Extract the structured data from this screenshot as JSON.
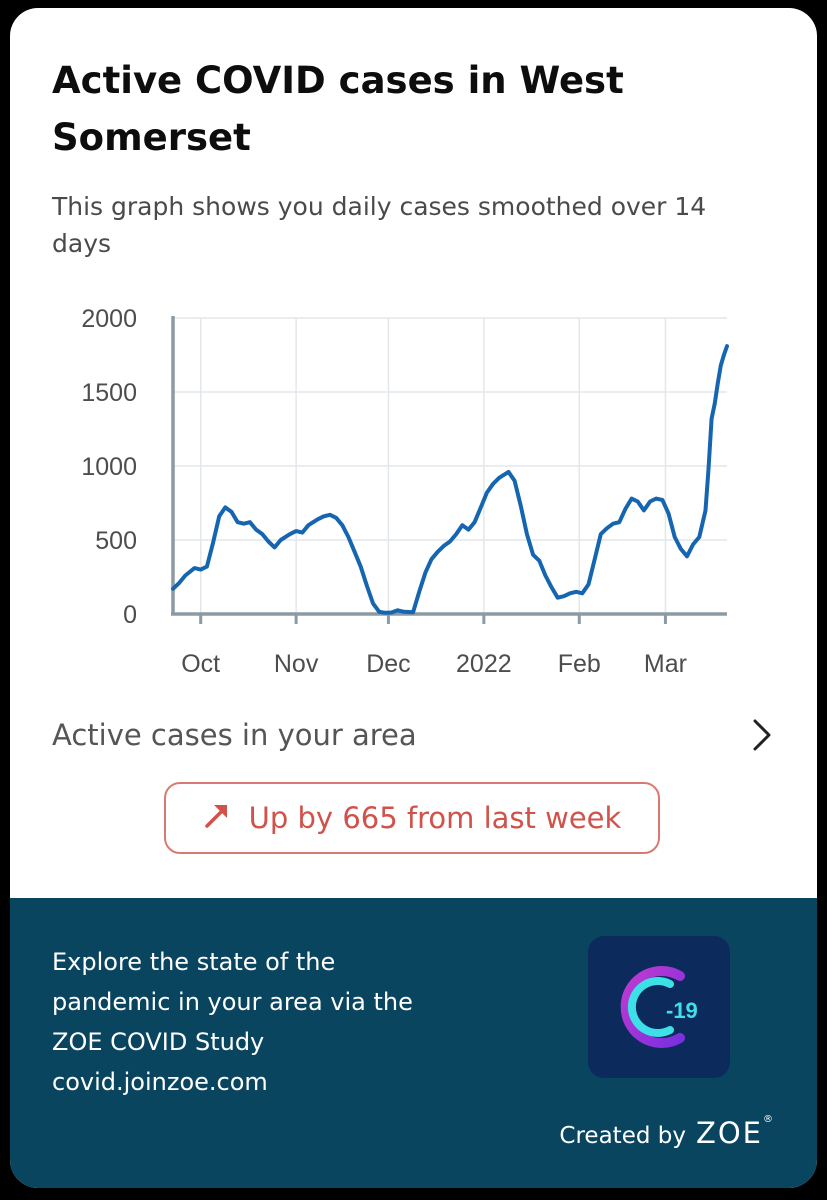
{
  "card": {
    "title": "Active COVID cases in West Somerset",
    "subtitle": "This graph shows you daily cases smoothed over 14 days"
  },
  "chart_data": {
    "type": "line",
    "title": "",
    "xlabel": "",
    "ylabel": "",
    "ylim": [
      0,
      2000
    ],
    "yticks": [
      "0",
      "500",
      "1000",
      "1500",
      "2000"
    ],
    "xticks": [
      {
        "label": "Oct",
        "date": "2021-10-01"
      },
      {
        "label": "Nov",
        "date": "2021-11-01"
      },
      {
        "label": "Dec",
        "date": "2021-12-01"
      },
      {
        "label": "2022",
        "date": "2022-01-01"
      },
      {
        "label": "Feb",
        "date": "2022-02-01"
      },
      {
        "label": "Mar",
        "date": "2022-03-01"
      }
    ],
    "xlim": [
      "2021-09-22",
      "2022-03-21"
    ],
    "grid": true,
    "line_color": "#1565b0",
    "series": [
      {
        "name": "",
        "points": [
          [
            "2021-09-22",
            170
          ],
          [
            "2021-09-24",
            210
          ],
          [
            "2021-09-26",
            260
          ],
          [
            "2021-09-29",
            310
          ],
          [
            "2021-10-01",
            300
          ],
          [
            "2021-10-03",
            320
          ],
          [
            "2021-10-05",
            480
          ],
          [
            "2021-10-07",
            660
          ],
          [
            "2021-10-09",
            720
          ],
          [
            "2021-10-11",
            690
          ],
          [
            "2021-10-13",
            620
          ],
          [
            "2021-10-15",
            610
          ],
          [
            "2021-10-17",
            620
          ],
          [
            "2021-10-19",
            570
          ],
          [
            "2021-10-21",
            540
          ],
          [
            "2021-10-23",
            490
          ],
          [
            "2021-10-25",
            450
          ],
          [
            "2021-10-27",
            500
          ],
          [
            "2021-10-30",
            540
          ],
          [
            "2021-11-01",
            560
          ],
          [
            "2021-11-03",
            550
          ],
          [
            "2021-11-05",
            600
          ],
          [
            "2021-11-08",
            640
          ],
          [
            "2021-11-10",
            660
          ],
          [
            "2021-11-12",
            670
          ],
          [
            "2021-11-14",
            650
          ],
          [
            "2021-11-16",
            600
          ],
          [
            "2021-11-18",
            520
          ],
          [
            "2021-11-20",
            420
          ],
          [
            "2021-11-22",
            320
          ],
          [
            "2021-11-24",
            190
          ],
          [
            "2021-11-26",
            70
          ],
          [
            "2021-11-28",
            15
          ],
          [
            "2021-11-30",
            8
          ],
          [
            "2021-12-02",
            10
          ],
          [
            "2021-12-04",
            25
          ],
          [
            "2021-12-06",
            15
          ],
          [
            "2021-12-09",
            12
          ],
          [
            "2021-12-11",
            150
          ],
          [
            "2021-12-13",
            280
          ],
          [
            "2021-12-15",
            370
          ],
          [
            "2021-12-17",
            420
          ],
          [
            "2021-12-19",
            460
          ],
          [
            "2021-12-21",
            490
          ],
          [
            "2021-12-23",
            540
          ],
          [
            "2021-12-25",
            600
          ],
          [
            "2021-12-27",
            570
          ],
          [
            "2021-12-29",
            620
          ],
          [
            "2021-12-31",
            720
          ],
          [
            "2022-01-02",
            820
          ],
          [
            "2022-01-04",
            880
          ],
          [
            "2022-01-06",
            920
          ],
          [
            "2022-01-09",
            960
          ],
          [
            "2022-01-11",
            900
          ],
          [
            "2022-01-13",
            730
          ],
          [
            "2022-01-15",
            540
          ],
          [
            "2022-01-17",
            400
          ],
          [
            "2022-01-19",
            360
          ],
          [
            "2022-01-21",
            260
          ],
          [
            "2022-01-23",
            180
          ],
          [
            "2022-01-25",
            110
          ],
          [
            "2022-01-27",
            120
          ],
          [
            "2022-01-29",
            140
          ],
          [
            "2022-01-31",
            150
          ],
          [
            "2022-02-02",
            140
          ],
          [
            "2022-02-04",
            200
          ],
          [
            "2022-02-06",
            370
          ],
          [
            "2022-02-08",
            540
          ],
          [
            "2022-02-10",
            580
          ],
          [
            "2022-02-12",
            610
          ],
          [
            "2022-02-14",
            620
          ],
          [
            "2022-02-16",
            710
          ],
          [
            "2022-02-18",
            780
          ],
          [
            "2022-02-20",
            760
          ],
          [
            "2022-02-22",
            700
          ],
          [
            "2022-02-24",
            760
          ],
          [
            "2022-02-26",
            780
          ],
          [
            "2022-02-28",
            770
          ],
          [
            "2022-03-02",
            680
          ],
          [
            "2022-03-04",
            520
          ],
          [
            "2022-03-06",
            440
          ],
          [
            "2022-03-08",
            390
          ],
          [
            "2022-03-10",
            470
          ],
          [
            "2022-03-12",
            520
          ],
          [
            "2022-03-14",
            700
          ],
          [
            "2022-03-15",
            980
          ],
          [
            "2022-03-16",
            1320
          ],
          [
            "2022-03-17",
            1420
          ],
          [
            "2022-03-18",
            1560
          ],
          [
            "2022-03-19",
            1680
          ],
          [
            "2022-03-20",
            1750
          ],
          [
            "2022-03-21",
            1810
          ]
        ]
      }
    ]
  },
  "summary": {
    "active_label": "Active cases in your area",
    "change_text": "Up by 665 from last week",
    "change_color": "#d0524a"
  },
  "footer": {
    "lines": [
      "Explore the state of the",
      "pandemic in your area via the",
      "ZOE COVID Study",
      "covid.joinzoe.com"
    ],
    "app_icon_text": "-19",
    "created_by": "Created by",
    "brand": "ZOE",
    "brand_mark": "®",
    "background": "#0a4560"
  }
}
